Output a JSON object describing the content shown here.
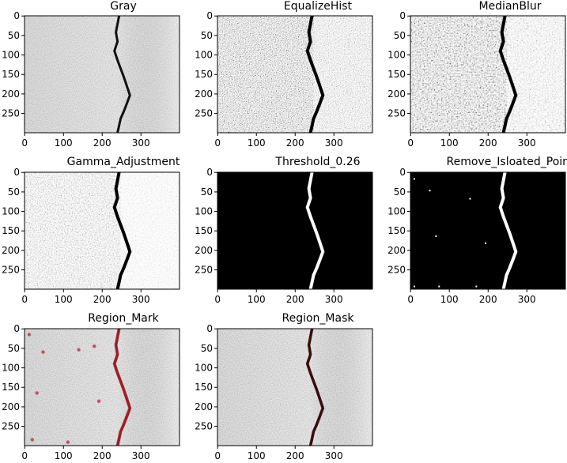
{
  "figure": {
    "panels": [
      {
        "title": "Gray",
        "style": "gray"
      },
      {
        "title": "EqualizeHist",
        "style": "equalized"
      },
      {
        "title": "MedianBlur",
        "style": "median"
      },
      {
        "title": "Gamma_Adjustment",
        "style": "gamma"
      },
      {
        "title": "Threshold_0.26",
        "style": "threshold"
      },
      {
        "title": "Remove_Isloated_Point",
        "style": "cleaned"
      },
      {
        "title": "Region_Mark",
        "style": "mark"
      },
      {
        "title": "Region_Mask",
        "style": "mask"
      }
    ],
    "y_ticks": [
      "0",
      "50",
      "100",
      "150",
      "200",
      "250"
    ],
    "x_ticks": [
      "0",
      "100",
      "200",
      "300"
    ],
    "colors": {
      "crack": "#111111",
      "mark_red": "#c0262d",
      "background_black": "#000000",
      "foreground_white": "#ffffff"
    }
  }
}
